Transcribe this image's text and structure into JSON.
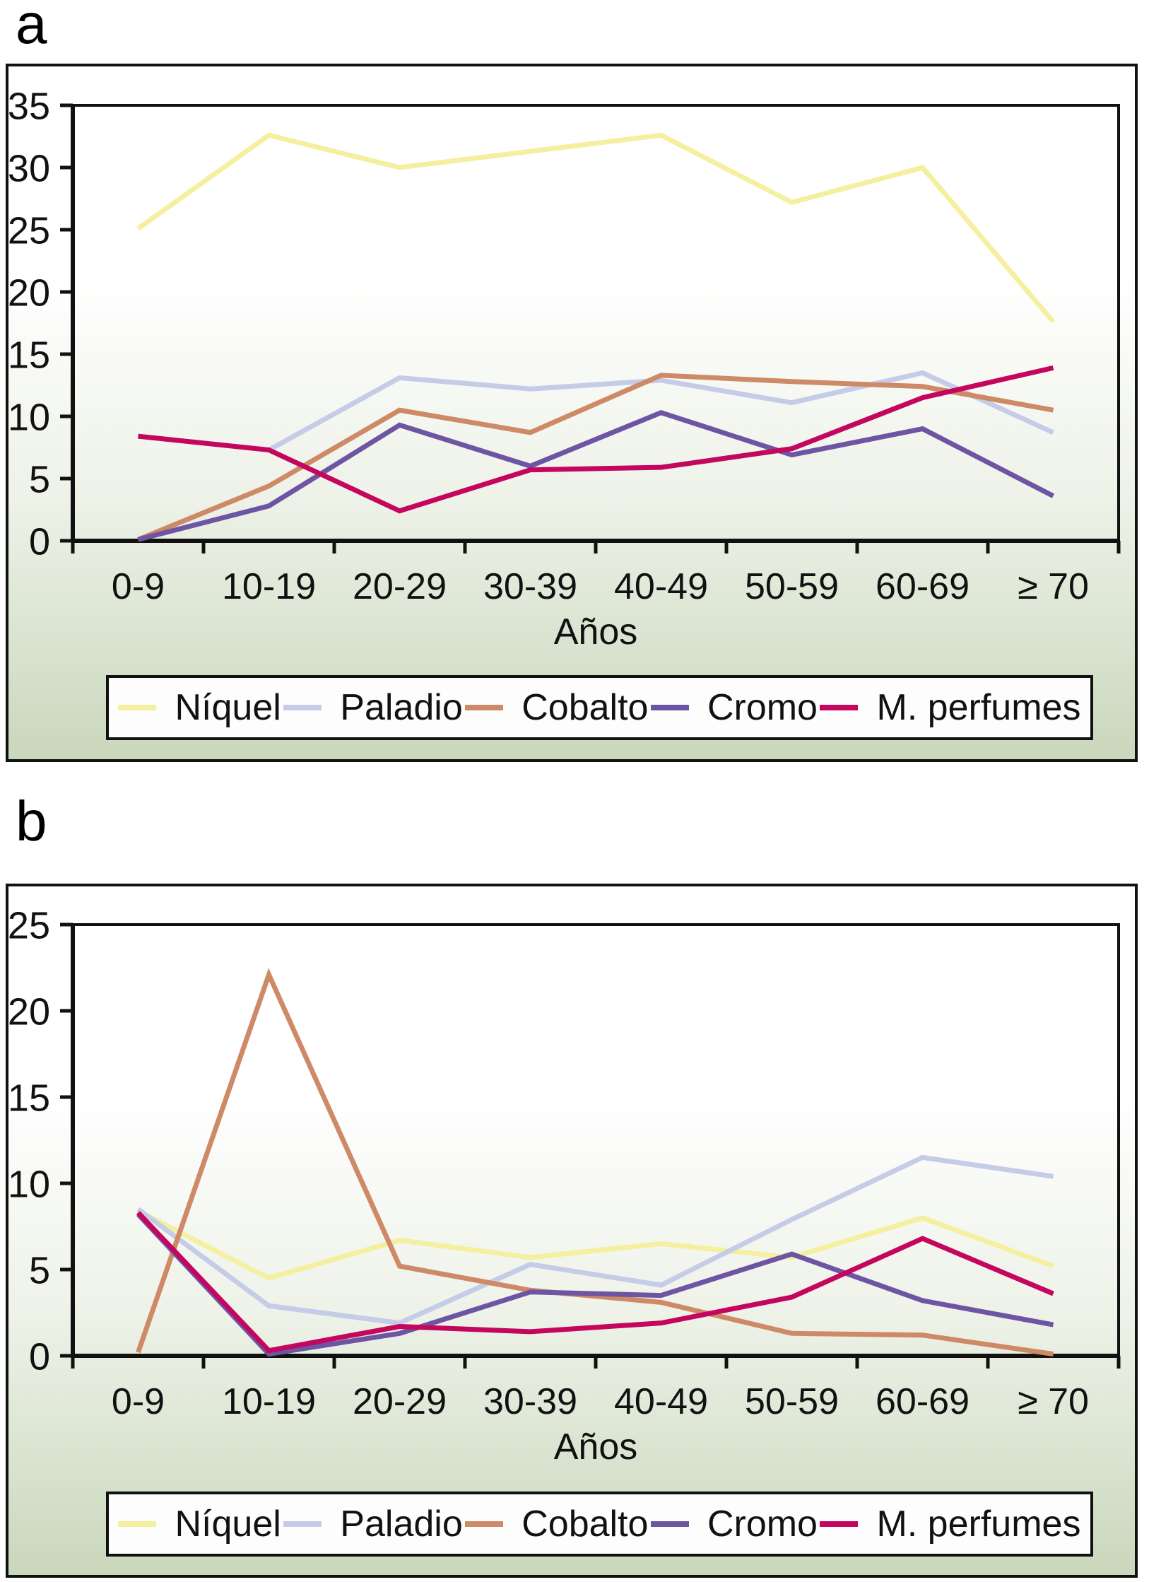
{
  "panels": [
    {
      "letter": "a"
    },
    {
      "letter": "b"
    }
  ],
  "colors": {
    "axis": "#111111",
    "background_gradient_top": "#FFFFFF",
    "background_gradient_bottom": "#C9D7BC",
    "legend_background": "#FDFDFD",
    "niquel": "#F5EFA0",
    "paladio": "#C5CCE8",
    "cobalto": "#CE8A67",
    "cromo": "#6D55A3",
    "m_perfumes": "#C4065F"
  },
  "chart_data": [
    {
      "panel": "a",
      "type": "line",
      "title": "",
      "xlabel": "Años",
      "ylabel": "",
      "categories": [
        "0-9",
        "10-19",
        "20-29",
        "30-39",
        "40-49",
        "50-59",
        "60-69",
        "≥ 70"
      ],
      "ylim": [
        0,
        35
      ],
      "yticks": [
        0,
        5,
        10,
        15,
        20,
        25,
        30,
        35
      ],
      "grid": false,
      "legend_position": "bottom",
      "series": [
        {
          "name": "Níquel",
          "color": "#F5EFA0",
          "values": [
            25.1,
            32.6,
            30.0,
            31.3,
            32.6,
            27.2,
            30.0,
            17.6
          ]
        },
        {
          "name": "Paladio",
          "color": "#C5CCE8",
          "values": [
            null,
            7.3,
            13.1,
            12.2,
            12.9,
            11.1,
            13.5,
            8.7
          ]
        },
        {
          "name": "Cobalto",
          "color": "#CE8A67",
          "values": [
            0.1,
            4.4,
            10.5,
            8.7,
            13.3,
            12.8,
            12.4,
            10.5
          ]
        },
        {
          "name": "Cromo",
          "color": "#6D55A3",
          "values": [
            0.1,
            2.8,
            9.3,
            6.0,
            10.3,
            6.9,
            9.0,
            3.6
          ]
        },
        {
          "name": "M. perfumes",
          "color": "#C4065F",
          "values": [
            8.4,
            7.3,
            2.4,
            5.7,
            5.9,
            7.4,
            11.5,
            13.9
          ]
        }
      ]
    },
    {
      "panel": "b",
      "type": "line",
      "title": "",
      "xlabel": "Años",
      "ylabel": "",
      "categories": [
        "0-9",
        "10-19",
        "20-29",
        "30-39",
        "40-49",
        "50-59",
        "60-69",
        "≥ 70"
      ],
      "ylim": [
        0,
        25
      ],
      "yticks": [
        0,
        5,
        10,
        15,
        20,
        25
      ],
      "grid": false,
      "legend_position": "bottom",
      "series": [
        {
          "name": "Níquel",
          "color": "#F5EFA0",
          "values": [
            8.4,
            4.5,
            6.7,
            5.7,
            6.5,
            5.7,
            8.0,
            5.2
          ]
        },
        {
          "name": "Paladio",
          "color": "#C5CCE8",
          "values": [
            8.5,
            2.9,
            1.9,
            5.3,
            4.1,
            7.9,
            11.5,
            10.4
          ]
        },
        {
          "name": "Cobalto",
          "color": "#CE8A67",
          "values": [
            0.2,
            22.1,
            5.2,
            3.8,
            3.1,
            1.3,
            1.2,
            0.1
          ]
        },
        {
          "name": "Cromo",
          "color": "#6D55A3",
          "values": [
            8.2,
            0.1,
            1.3,
            3.7,
            3.5,
            5.9,
            3.2,
            1.8
          ]
        },
        {
          "name": "M. perfumes",
          "color": "#C4065F",
          "values": [
            8.3,
            0.3,
            1.7,
            1.4,
            1.9,
            3.4,
            6.8,
            3.6
          ]
        }
      ]
    }
  ]
}
